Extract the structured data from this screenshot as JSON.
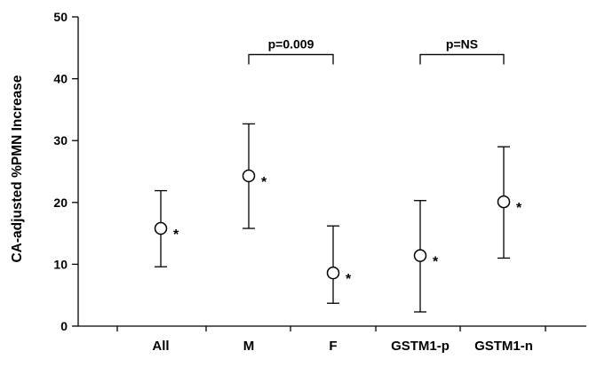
{
  "chart_data": {
    "type": "scatter",
    "title": "",
    "xlabel": "",
    "ylabel": "CA-adjusted %PMN Increase",
    "ylim": [
      0,
      50
    ],
    "yticks": [
      0,
      10,
      20,
      30,
      40,
      50
    ],
    "categories": [
      "All",
      "M",
      "F",
      "GSTM1-p",
      "GSTM1-n"
    ],
    "points": [
      {
        "category": "All",
        "value": 15.8,
        "lower": 9.6,
        "upper": 21.9,
        "marker": "*"
      },
      {
        "category": "M",
        "value": 24.3,
        "lower": 15.8,
        "upper": 32.7,
        "marker": "*"
      },
      {
        "category": "F",
        "value": 8.6,
        "lower": 3.7,
        "upper": 16.2,
        "marker": "*"
      },
      {
        "category": "GSTM1-p",
        "value": 11.4,
        "lower": 2.3,
        "upper": 20.3,
        "marker": "*"
      },
      {
        "category": "GSTM1-n",
        "value": 20.1,
        "lower": 11.0,
        "upper": 29.0,
        "marker": "*"
      }
    ],
    "brackets": [
      {
        "from": "M",
        "to": "F",
        "label": "p=0.009",
        "y": 43.9
      },
      {
        "from": "GSTM1-p",
        "to": "GSTM1-n",
        "label": "p=NS",
        "y": 43.9
      }
    ],
    "grid": false,
    "legend": "none"
  }
}
